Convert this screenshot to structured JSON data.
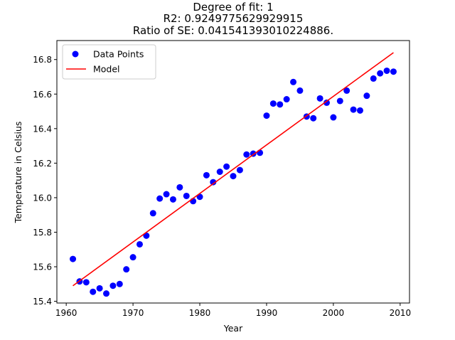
{
  "chart_data": {
    "type": "scatter",
    "title_lines": [
      "Degree of fit: 1",
      "R2: 0.9249775629929915",
      "Ratio of SE: 0.041541393010224886."
    ],
    "xlabel": "Year",
    "ylabel": "Temperature in Celsius",
    "xlim": [
      1958.6,
      2011.4
    ],
    "ylim": [
      15.39,
      16.91
    ],
    "xticks": [
      1960,
      1970,
      1980,
      1990,
      2000,
      2010
    ],
    "yticks": [
      15.4,
      15.6,
      15.8,
      16.0,
      16.2,
      16.4,
      16.6,
      16.8
    ],
    "grid": false,
    "legend_position": "top-left",
    "series": [
      {
        "name": "Data Points",
        "kind": "scatter",
        "color": "#0000ff",
        "x": [
          1961,
          1962,
          1963,
          1964,
          1965,
          1966,
          1967,
          1968,
          1969,
          1970,
          1971,
          1972,
          1973,
          1974,
          1975,
          1976,
          1977,
          1978,
          1979,
          1980,
          1981,
          1982,
          1983,
          1984,
          1985,
          1986,
          1987,
          1988,
          1989,
          1990,
          1991,
          1992,
          1993,
          1994,
          1995,
          1996,
          1997,
          1998,
          1999,
          2000,
          2001,
          2002,
          2003,
          2004,
          2005,
          2006,
          2007,
          2008,
          2009
        ],
        "y": [
          15.645,
          15.515,
          15.51,
          15.455,
          15.475,
          15.445,
          15.49,
          15.5,
          15.585,
          15.655,
          15.73,
          15.78,
          15.91,
          15.995,
          16.02,
          15.99,
          16.06,
          16.01,
          15.98,
          16.005,
          16.13,
          16.09,
          16.15,
          16.18,
          16.125,
          16.16,
          16.25,
          16.255,
          16.26,
          16.475,
          16.545,
          16.54,
          16.57,
          16.67,
          16.62,
          16.47,
          16.46,
          16.575,
          16.55,
          16.465,
          16.56,
          16.62,
          16.51,
          16.505,
          16.59,
          16.69,
          16.72,
          16.735,
          16.73
        ]
      },
      {
        "name": "Model",
        "kind": "line",
        "color": "#ff0000",
        "x": [
          1961,
          2009
        ],
        "y": [
          15.49,
          16.84
        ]
      }
    ]
  }
}
